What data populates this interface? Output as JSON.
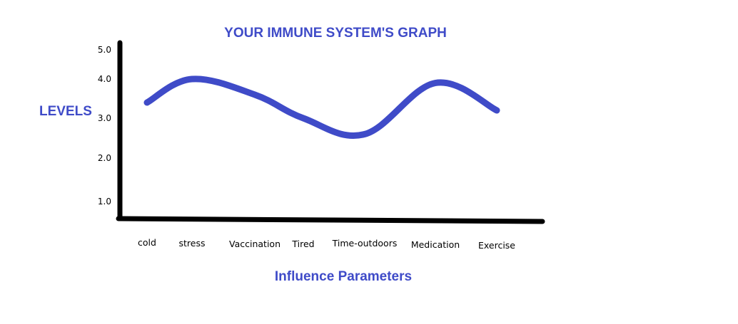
{
  "chart_data": {
    "type": "line",
    "title": "YOUR IMMUNE SYSTEM'S GRAPH",
    "xlabel": "Influence Parameters",
    "ylabel": "LEVELS",
    "categories": [
      "cold",
      "stress",
      "Vaccination",
      "Tired",
      "Time-outdoors",
      "Medication",
      "Exercise"
    ],
    "y_ticks": [
      "1.0",
      "2.0",
      "3.0",
      "4.0",
      "5.0"
    ],
    "ylim": [
      0,
      5
    ],
    "series": [
      {
        "x": [
          "cold",
          "stress",
          "Vaccination",
          "Tired",
          "Time-outdoors",
          "Medication",
          "Exercise"
        ],
        "values": [
          3.4,
          4.0,
          3.6,
          3.0,
          2.6,
          3.9,
          3.2
        ]
      }
    ],
    "line_color": "#3f4bc8",
    "text_color": "#3f4bc8",
    "axis_color": "#000000",
    "grid": false,
    "legend": "none"
  }
}
